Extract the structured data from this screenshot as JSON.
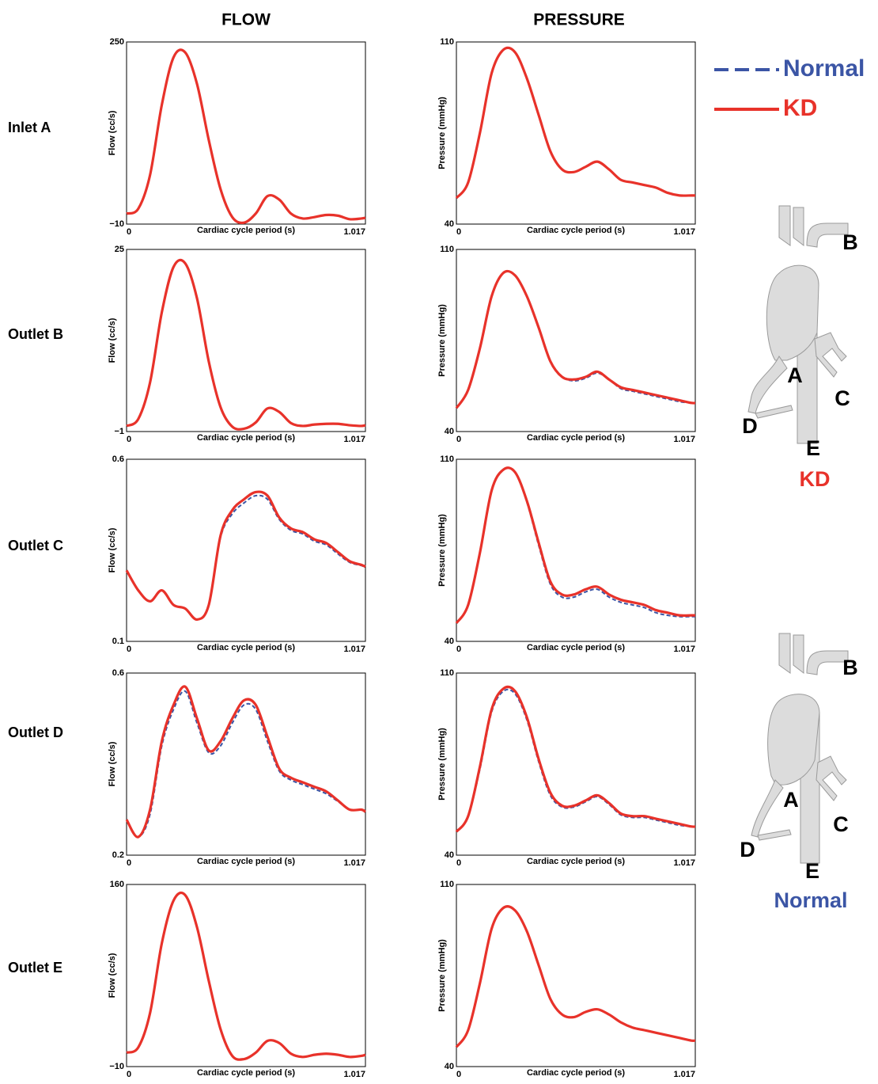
{
  "figure": {
    "columns": [
      "FLOW",
      "PRESSURE"
    ],
    "rows": [
      "Inlet A",
      "Outlet B",
      "Outlet C",
      "Outlet D",
      "Outlet E"
    ],
    "models": [
      {
        "letters": [
          "A",
          "B",
          "C",
          "D",
          "E"
        ],
        "name": "KD"
      },
      {
        "letters": [
          "A",
          "B",
          "C",
          "D",
          "E"
        ],
        "name": "Normal"
      }
    ]
  },
  "chart_data": [
    {
      "type": "line",
      "x_label": "Cardiac cycle period (s)",
      "y_label": "Flow (cc/s)",
      "x": [
        0,
        0.05,
        0.1,
        0.15,
        0.2,
        0.25,
        0.3,
        0.35,
        0.4,
        0.45,
        0.5,
        0.55,
        0.6,
        0.65,
        0.7,
        0.75,
        0.8,
        0.85,
        0.9,
        0.95,
        1.0,
        1.017
      ],
      "xlim": [
        0,
        1.017
      ],
      "xticks": [
        0,
        1.017
      ],
      "ylim": [
        -10,
        250
      ],
      "yticks": [
        {
          "value": -10,
          "label": "−10"
        },
        250
      ],
      "grid": false,
      "series": [
        {
          "name": "Normal",
          "color": "#3b55a5",
          "style": "dashed",
          "values": [
            5,
            12,
            60,
            160,
            228,
            235,
            190,
            110,
            40,
            0,
            -8,
            5,
            30,
            25,
            5,
            -2,
            0,
            3,
            2,
            -3,
            -2,
            -1
          ]
        },
        {
          "name": "KD",
          "color": "#e8322a",
          "style": "solid",
          "values": [
            5,
            12,
            60,
            160,
            228,
            235,
            190,
            110,
            40,
            0,
            -8,
            5,
            30,
            25,
            5,
            -2,
            0,
            3,
            2,
            -3,
            -2,
            -1
          ]
        }
      ]
    },
    {
      "type": "line",
      "x_label": "Cardiac cycle period (s)",
      "y_label": "Pressure (mmHg)",
      "x": [
        0,
        0.05,
        0.1,
        0.15,
        0.2,
        0.25,
        0.3,
        0.35,
        0.4,
        0.45,
        0.5,
        0.55,
        0.6,
        0.65,
        0.7,
        0.75,
        0.8,
        0.85,
        0.9,
        0.95,
        1.0,
        1.017
      ],
      "xlim": [
        0,
        1.017
      ],
      "xticks": [
        0,
        1.017
      ],
      "ylim": [
        40,
        110
      ],
      "yticks": [
        40,
        110
      ],
      "grid": false,
      "legend": "top-right",
      "series": [
        {
          "name": "Normal",
          "color": "#3b55a5",
          "style": "dashed",
          "values": [
            50,
            56,
            75,
            98,
            107,
            106,
            96,
            82,
            68,
            61,
            60,
            62,
            64,
            61,
            57,
            56,
            55,
            54,
            52,
            51,
            51,
            51
          ]
        },
        {
          "name": "KD",
          "color": "#e8322a",
          "style": "solid",
          "values": [
            50,
            56,
            75,
            98,
            107,
            106,
            96,
            82,
            68,
            61,
            60,
            62,
            64,
            61,
            57,
            56,
            55,
            54,
            52,
            51,
            51,
            51
          ]
        }
      ]
    },
    {
      "type": "line",
      "x_label": "Cardiac cycle period (s)",
      "y_label": "Flow (cc/s)",
      "x": [
        0,
        0.05,
        0.1,
        0.15,
        0.2,
        0.25,
        0.3,
        0.35,
        0.4,
        0.45,
        0.5,
        0.55,
        0.6,
        0.65,
        0.7,
        0.75,
        0.8,
        0.85,
        0.9,
        0.95,
        1.0,
        1.017
      ],
      "xlim": [
        0,
        1.017
      ],
      "xticks": [
        0,
        1.017
      ],
      "ylim": [
        -1,
        25
      ],
      "yticks": [
        {
          "value": -1,
          "label": "−1"
        },
        25
      ],
      "grid": false,
      "series": [
        {
          "name": "Normal",
          "color": "#3b55a5",
          "style": "dashed",
          "values": [
            -0.2,
            0.8,
            6,
            16,
            22.5,
            23,
            18,
            9,
            2.5,
            -0.3,
            -0.6,
            0.3,
            2.3,
            1.8,
            0.2,
            -0.2,
            0,
            0.1,
            0.1,
            -0.1,
            -0.2,
            -0.1
          ]
        },
        {
          "name": "KD",
          "color": "#e8322a",
          "style": "solid",
          "values": [
            -0.2,
            0.8,
            6,
            16,
            22.5,
            23,
            18,
            9,
            2.5,
            -0.3,
            -0.6,
            0.3,
            2.3,
            1.8,
            0.2,
            -0.2,
            0,
            0.1,
            0.1,
            -0.1,
            -0.2,
            -0.1
          ]
        }
      ]
    },
    {
      "type": "line",
      "x_label": "Cardiac cycle period (s)",
      "y_label": "Pressure (mmHg)",
      "x": [
        0,
        0.05,
        0.1,
        0.15,
        0.2,
        0.25,
        0.3,
        0.35,
        0.4,
        0.45,
        0.5,
        0.55,
        0.6,
        0.65,
        0.7,
        0.75,
        0.8,
        0.85,
        0.9,
        0.95,
        1.0,
        1.017
      ],
      "xlim": [
        0,
        1.017
      ],
      "xticks": [
        0,
        1.017
      ],
      "ylim": [
        40,
        110
      ],
      "yticks": [
        40,
        110
      ],
      "grid": false,
      "series": [
        {
          "name": "Normal",
          "color": "#3b55a5",
          "style": "dashed",
          "values": [
            49,
            56,
            72,
            92,
            101,
            100,
            92,
            80,
            67,
            61,
            59.5,
            60.5,
            62.5,
            60,
            56.5,
            55.5,
            54.5,
            53.5,
            52.5,
            51.5,
            51,
            51
          ]
        },
        {
          "name": "KD",
          "color": "#e8322a",
          "style": "solid",
          "values": [
            49,
            56,
            72,
            92,
            101,
            100,
            92,
            80,
            67,
            61,
            60,
            61,
            63,
            60,
            57,
            56,
            55,
            54,
            53,
            52,
            51,
            51
          ]
        }
      ]
    },
    {
      "type": "line",
      "x_label": "Cardiac cycle period (s)",
      "y_label": "Flow (cc/s)",
      "x": [
        0,
        0.05,
        0.1,
        0.15,
        0.2,
        0.25,
        0.3,
        0.35,
        0.4,
        0.45,
        0.5,
        0.55,
        0.6,
        0.65,
        0.7,
        0.75,
        0.8,
        0.85,
        0.9,
        0.95,
        1.0,
        1.017
      ],
      "xlim": [
        0,
        1.017
      ],
      "xticks": [
        0,
        1.017
      ],
      "ylim": [
        0.1,
        0.6
      ],
      "yticks": [
        0.1,
        0.6
      ],
      "grid": false,
      "series": [
        {
          "name": "Normal",
          "color": "#3b55a5",
          "style": "dashed",
          "values": [
            0.295,
            0.24,
            0.21,
            0.24,
            0.2,
            0.19,
            0.16,
            0.2,
            0.385,
            0.45,
            0.48,
            0.5,
            0.49,
            0.435,
            0.405,
            0.395,
            0.375,
            0.365,
            0.34,
            0.317,
            0.308,
            0.303
          ]
        },
        {
          "name": "KD",
          "color": "#e8322a",
          "style": "solid",
          "values": [
            0.295,
            0.24,
            0.21,
            0.24,
            0.2,
            0.19,
            0.16,
            0.2,
            0.39,
            0.46,
            0.49,
            0.51,
            0.5,
            0.44,
            0.41,
            0.4,
            0.38,
            0.37,
            0.345,
            0.32,
            0.31,
            0.305
          ]
        }
      ]
    },
    {
      "type": "line",
      "x_label": "Cardiac cycle period (s)",
      "y_label": "Pressure (mmHg)",
      "x": [
        0,
        0.05,
        0.1,
        0.15,
        0.2,
        0.25,
        0.3,
        0.35,
        0.4,
        0.45,
        0.5,
        0.55,
        0.6,
        0.65,
        0.7,
        0.75,
        0.8,
        0.85,
        0.9,
        0.95,
        1.0,
        1.017
      ],
      "xlim": [
        0,
        1.017
      ],
      "xticks": [
        0,
        1.017
      ],
      "ylim": [
        40,
        110
      ],
      "yticks": [
        40,
        110
      ],
      "grid": false,
      "series": [
        {
          "name": "Normal",
          "color": "#3b55a5",
          "style": "dashed",
          "values": [
            47,
            54,
            74,
            98,
            106,
            105,
            93.5,
            77,
            62,
            57,
            57,
            59,
            60,
            57,
            55,
            54,
            53,
            51,
            50,
            49.5,
            49.5,
            49.5
          ]
        },
        {
          "name": "KD",
          "color": "#e8322a",
          "style": "solid",
          "values": [
            47,
            54,
            74,
            98,
            106,
            105,
            94,
            78,
            63,
            58,
            58,
            60,
            61,
            58,
            56,
            55,
            54,
            52,
            51,
            50,
            50,
            50
          ]
        }
      ]
    },
    {
      "type": "line",
      "x_label": "Cardiac cycle period (s)",
      "y_label": "Flow (cc/s)",
      "x": [
        0,
        0.05,
        0.1,
        0.15,
        0.2,
        0.25,
        0.3,
        0.35,
        0.4,
        0.45,
        0.5,
        0.55,
        0.6,
        0.65,
        0.7,
        0.75,
        0.8,
        0.85,
        0.9,
        0.95,
        1.0,
        1.017
      ],
      "xlim": [
        0,
        1.017
      ],
      "xticks": [
        0,
        1.017
      ],
      "ylim": [
        0.2,
        0.6
      ],
      "yticks": [
        0.2,
        0.6
      ],
      "grid": false,
      "series": [
        {
          "name": "Normal",
          "color": "#3b55a5",
          "style": "dashed",
          "values": [
            0.278,
            0.24,
            0.29,
            0.44,
            0.52,
            0.56,
            0.49,
            0.425,
            0.44,
            0.49,
            0.53,
            0.52,
            0.45,
            0.385,
            0.365,
            0.355,
            0.345,
            0.335,
            0.318,
            0.3,
            0.3,
            0.295
          ]
        },
        {
          "name": "KD",
          "color": "#e8322a",
          "style": "solid",
          "values": [
            0.278,
            0.24,
            0.3,
            0.45,
            0.53,
            0.57,
            0.5,
            0.43,
            0.45,
            0.5,
            0.54,
            0.53,
            0.46,
            0.39,
            0.37,
            0.36,
            0.35,
            0.34,
            0.32,
            0.3,
            0.3,
            0.295
          ]
        }
      ]
    },
    {
      "type": "line",
      "x_label": "Cardiac cycle period (s)",
      "y_label": "Pressure (mmHg)",
      "x": [
        0,
        0.05,
        0.1,
        0.15,
        0.2,
        0.25,
        0.3,
        0.35,
        0.4,
        0.45,
        0.5,
        0.55,
        0.6,
        0.65,
        0.7,
        0.75,
        0.8,
        0.85,
        0.9,
        0.95,
        1.0,
        1.017
      ],
      "xlim": [
        0,
        1.017
      ],
      "xticks": [
        0,
        1.017
      ],
      "ylim": [
        40,
        110
      ],
      "yticks": [
        40,
        110
      ],
      "grid": false,
      "series": [
        {
          "name": "Normal",
          "color": "#3b55a5",
          "style": "dashed",
          "values": [
            49,
            55,
            73,
            95,
            103,
            102,
            92,
            76,
            63,
            58.5,
            58.5,
            60.5,
            62.5,
            59.5,
            55.5,
            54.5,
            54.5,
            53.5,
            52.5,
            51.5,
            51,
            51
          ]
        },
        {
          "name": "KD",
          "color": "#e8322a",
          "style": "solid",
          "values": [
            49,
            55,
            74,
            96,
            104,
            103,
            93,
            77,
            64,
            59,
            59,
            61,
            63,
            60,
            56,
            55,
            55,
            54,
            53,
            52,
            51,
            51
          ]
        }
      ]
    },
    {
      "type": "line",
      "x_label": "Cardiac cycle period (s)",
      "y_label": "Flow (cc/s)",
      "x": [
        0,
        0.05,
        0.1,
        0.15,
        0.2,
        0.25,
        0.3,
        0.35,
        0.4,
        0.45,
        0.5,
        0.55,
        0.6,
        0.65,
        0.7,
        0.75,
        0.8,
        0.85,
        0.9,
        0.95,
        1.0,
        1.017
      ],
      "xlim": [
        0,
        1.017
      ],
      "xticks": [
        0,
        1.017
      ],
      "ylim": [
        -10,
        160
      ],
      "yticks": [
        {
          "value": -10,
          "label": "−10"
        },
        160
      ],
      "grid": false,
      "series": [
        {
          "name": "Normal",
          "color": "#3b55a5",
          "style": "dashed",
          "values": [
            3,
            8,
            40,
            105,
            145,
            150,
            120,
            70,
            25,
            0,
            -3,
            3,
            14,
            12,
            2,
            -1,
            1,
            2,
            1,
            -1,
            0,
            1
          ]
        },
        {
          "name": "KD",
          "color": "#e8322a",
          "style": "solid",
          "values": [
            3,
            8,
            40,
            105,
            145,
            150,
            120,
            70,
            25,
            0,
            -3,
            3,
            14,
            12,
            2,
            -1,
            1,
            2,
            1,
            -1,
            0,
            1
          ]
        }
      ]
    },
    {
      "type": "line",
      "x_label": "Cardiac cycle period (s)",
      "y_label": "Pressure (mmHg)",
      "x": [
        0,
        0.05,
        0.1,
        0.15,
        0.2,
        0.25,
        0.3,
        0.35,
        0.4,
        0.45,
        0.5,
        0.55,
        0.6,
        0.65,
        0.7,
        0.75,
        0.8,
        0.85,
        0.9,
        0.95,
        1.0,
        1.017
      ],
      "xlim": [
        0,
        1.017
      ],
      "xticks": [
        0,
        1.017
      ],
      "ylim": [
        40,
        110
      ],
      "yticks": [
        40,
        110
      ],
      "grid": false,
      "series": [
        {
          "name": "Normal",
          "color": "#3b55a5",
          "style": "dashed",
          "values": [
            47.5,
            54,
            72,
            93,
            101,
            100,
            92,
            79,
            66,
            60,
            59,
            61,
            62,
            60,
            57,
            55,
            54,
            53,
            52,
            51,
            50,
            50
          ]
        },
        {
          "name": "KD",
          "color": "#e8322a",
          "style": "solid",
          "values": [
            47.5,
            54,
            72,
            93,
            101,
            100,
            92,
            79,
            66,
            60,
            59,
            61,
            62,
            60,
            57,
            55,
            54,
            53,
            52,
            51,
            50,
            50
          ]
        }
      ]
    }
  ]
}
